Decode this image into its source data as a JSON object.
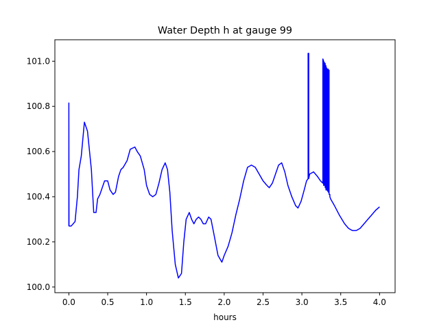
{
  "chart_data": {
    "type": "line",
    "title": "Water Depth h at gauge 99",
    "xlabel": "hours",
    "ylabel": "",
    "xlim": [
      -0.18,
      4.2
    ],
    "ylim": [
      99.975,
      101.095
    ],
    "grid": false,
    "x_ticks": [
      {
        "value": 0.0,
        "label": "0.0"
      },
      {
        "value": 0.5,
        "label": "0.5"
      },
      {
        "value": 1.0,
        "label": "1.0"
      },
      {
        "value": 1.5,
        "label": "1.5"
      },
      {
        "value": 2.0,
        "label": "2.0"
      },
      {
        "value": 2.5,
        "label": "2.5"
      },
      {
        "value": 3.0,
        "label": "3.0"
      },
      {
        "value": 3.5,
        "label": "3.5"
      },
      {
        "value": 4.0,
        "label": "4.0"
      }
    ],
    "y_ticks": [
      {
        "value": 100.0,
        "label": "100.0"
      },
      {
        "value": 100.2,
        "label": "100.2"
      },
      {
        "value": 100.4,
        "label": "100.4"
      },
      {
        "value": 100.6,
        "label": "100.6"
      },
      {
        "value": 100.8,
        "label": "100.8"
      },
      {
        "value": 101.0,
        "label": "101.0"
      }
    ],
    "series": [
      {
        "color": "#0000ff",
        "x": [
          0.0,
          0.0,
          0.002,
          0.03,
          0.08,
          0.11,
          0.13,
          0.16,
          0.2,
          0.24,
          0.29,
          0.32,
          0.35,
          0.37,
          0.4,
          0.43,
          0.46,
          0.5,
          0.53,
          0.57,
          0.6,
          0.64,
          0.67,
          0.7,
          0.75,
          0.79,
          0.85,
          0.88,
          0.92,
          0.97,
          1.0,
          1.04,
          1.08,
          1.12,
          1.16,
          1.2,
          1.24,
          1.27,
          1.3,
          1.33,
          1.37,
          1.41,
          1.45,
          1.48,
          1.51,
          1.55,
          1.58,
          1.61,
          1.64,
          1.67,
          1.7,
          1.73,
          1.76,
          1.8,
          1.83,
          1.87,
          1.92,
          1.97,
          2.0,
          2.05,
          2.1,
          2.15,
          2.2,
          2.25,
          2.3,
          2.35,
          2.4,
          2.45,
          2.5,
          2.55,
          2.58,
          2.62,
          2.66,
          2.7,
          2.74,
          2.78,
          2.82,
          2.87,
          2.92,
          2.95,
          2.99,
          3.03,
          3.06,
          3.08,
          3.08,
          3.088,
          3.088,
          3.1,
          3.15,
          3.2,
          3.24,
          3.27,
          3.27,
          3.28,
          3.28,
          3.29,
          3.29,
          3.3,
          3.3,
          3.31,
          3.31,
          3.32,
          3.32,
          3.33,
          3.33,
          3.34,
          3.34,
          3.35,
          3.35,
          3.36,
          3.36,
          3.37,
          3.42,
          3.48,
          3.55,
          3.6,
          3.65,
          3.7,
          3.75,
          3.8,
          3.85,
          3.9,
          3.95,
          4.0
        ],
        "y": [
          100.27,
          100.815,
          100.27,
          100.27,
          100.29,
          100.4,
          100.52,
          100.58,
          100.73,
          100.69,
          100.52,
          100.33,
          100.33,
          100.39,
          100.41,
          100.44,
          100.47,
          100.47,
          100.43,
          100.41,
          100.42,
          100.49,
          100.52,
          100.53,
          100.56,
          100.61,
          100.62,
          100.6,
          100.58,
          100.52,
          100.45,
          100.41,
          100.4,
          100.41,
          100.46,
          100.52,
          100.55,
          100.52,
          100.42,
          100.25,
          100.1,
          100.04,
          100.06,
          100.2,
          100.3,
          100.33,
          100.3,
          100.28,
          100.3,
          100.31,
          100.3,
          100.28,
          100.28,
          100.31,
          100.3,
          100.23,
          100.14,
          100.11,
          100.14,
          100.18,
          100.24,
          100.32,
          100.39,
          100.47,
          100.53,
          100.54,
          100.53,
          100.5,
          100.47,
          100.45,
          100.44,
          100.46,
          100.5,
          100.54,
          100.55,
          100.51,
          100.45,
          100.4,
          100.36,
          100.35,
          100.38,
          100.43,
          100.47,
          100.48,
          101.035,
          101.035,
          100.48,
          100.5,
          100.51,
          100.49,
          100.47,
          100.46,
          101.01,
          101.0,
          100.45,
          100.995,
          100.45,
          100.99,
          100.44,
          100.98,
          100.43,
          100.97,
          100.43,
          100.965,
          100.425,
          100.965,
          100.42,
          100.96,
          100.41,
          100.41,
          100.4,
          100.39,
          100.36,
          100.32,
          100.28,
          100.26,
          100.25,
          100.25,
          100.26,
          100.28,
          100.3,
          100.32,
          100.34,
          100.355
        ]
      }
    ]
  }
}
